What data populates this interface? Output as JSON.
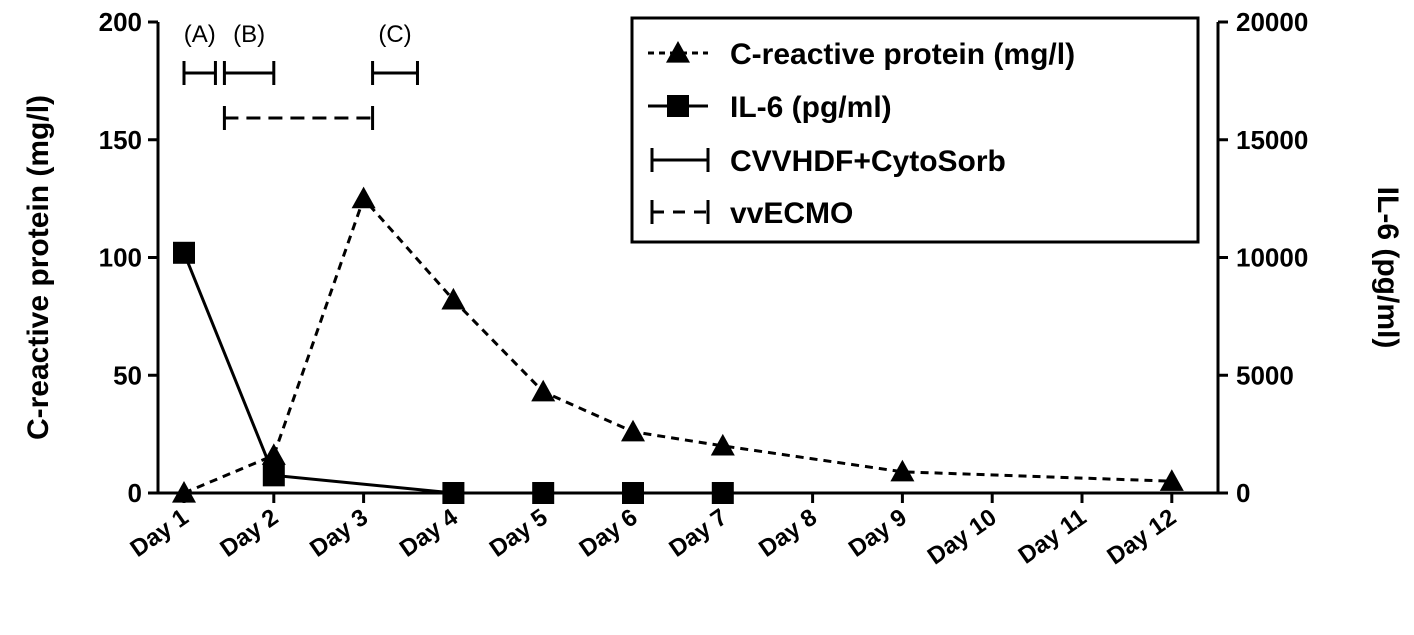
{
  "chart_data": {
    "type": "line",
    "categories": [
      "Day 1",
      "Day 2",
      "Day 3",
      "Day 4",
      "Day 5",
      "Day 6",
      "Day 7",
      "Day 8",
      "Day 9",
      "Day 10",
      "Day 11",
      "Day 12"
    ],
    "ylabel": "C-reactive protein (mg/l)",
    "ylabel_right": "IL-6 (pg/ml)",
    "ylim": [
      0,
      200
    ],
    "yticks": [
      "0",
      "50",
      "100",
      "150",
      "200"
    ],
    "ylim_right": [
      0,
      20000
    ],
    "yticks_right": [
      "0",
      "5000",
      "10000",
      "15000",
      "20000"
    ],
    "series": [
      {
        "name": "C-reactive protein (mg/l)",
        "axis": "left",
        "marker": "triangle",
        "line": "dashed",
        "points": [
          {
            "x": "Day 1",
            "y": 0
          },
          {
            "x": "Day 2",
            "y": 16
          },
          {
            "x": "Day 3",
            "y": 125
          },
          {
            "x": "Day 4",
            "y": 82
          },
          {
            "x": "Day 5",
            "y": 43
          },
          {
            "x": "Day 6",
            "y": 26
          },
          {
            "x": "Day 7",
            "y": 20
          },
          {
            "x": "Day 9",
            "y": 9
          },
          {
            "x": "Day 12",
            "y": 5
          }
        ]
      },
      {
        "name": "IL-6 (pg/ml)",
        "axis": "right",
        "marker": "square",
        "line": "solid",
        "points": [
          {
            "x": "Day 1",
            "y": 10200
          },
          {
            "x": "Day 2",
            "y": 750
          },
          {
            "x": "Day 4",
            "y": 0
          },
          {
            "x": "Day 5",
            "y": 0
          },
          {
            "x": "Day 6",
            "y": 0
          },
          {
            "x": "Day 7",
            "y": 0
          }
        ]
      }
    ],
    "legend": {
      "position": "top-right",
      "entries": [
        {
          "label": "C-reactive protein (mg/l)",
          "symbol": "dashed-triangle"
        },
        {
          "label": "IL-6 (pg/ml)",
          "symbol": "solid-square"
        },
        {
          "label": "CVVHDF+CytoSorb",
          "symbol": "solid-bracket"
        },
        {
          "label": "vvECMO",
          "symbol": "dashed-bracket"
        }
      ]
    },
    "intervals": [
      {
        "label": "(A)",
        "type": "CVVHDF+CytoSorb",
        "start": 1.0,
        "end": 1.35,
        "style": "solid"
      },
      {
        "label": "(B)",
        "type": "CVVHDF+CytoSorb",
        "start": 1.45,
        "end": 2.0,
        "style": "solid"
      },
      {
        "label": "(C)",
        "type": "CVVHDF+CytoSorb",
        "start": 3.1,
        "end": 3.6,
        "style": "solid"
      },
      {
        "label": "",
        "type": "vvECMO",
        "start": 1.45,
        "end": 3.1,
        "style": "dashed"
      }
    ],
    "grid": false
  }
}
